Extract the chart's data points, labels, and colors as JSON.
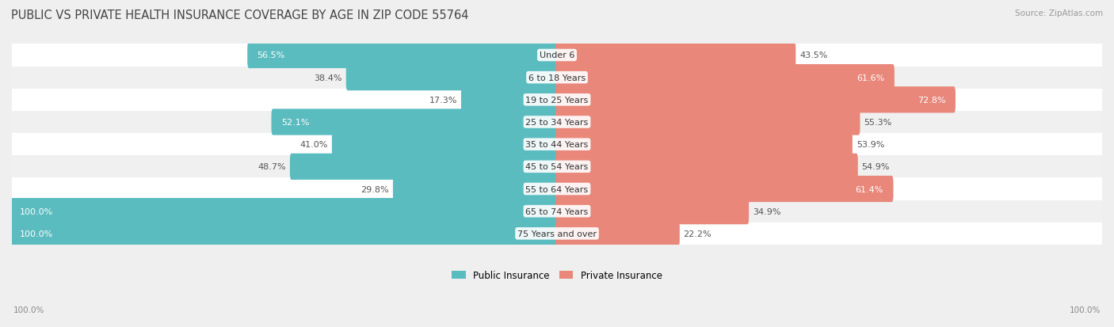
{
  "title": "PUBLIC VS PRIVATE HEALTH INSURANCE COVERAGE BY AGE IN ZIP CODE 55764",
  "source": "Source: ZipAtlas.com",
  "categories": [
    "Under 6",
    "6 to 18 Years",
    "19 to 25 Years",
    "25 to 34 Years",
    "35 to 44 Years",
    "45 to 54 Years",
    "55 to 64 Years",
    "65 to 74 Years",
    "75 Years and over"
  ],
  "public_values": [
    56.5,
    38.4,
    17.3,
    52.1,
    41.0,
    48.7,
    29.8,
    100.0,
    100.0
  ],
  "private_values": [
    43.5,
    61.6,
    72.8,
    55.3,
    53.9,
    54.9,
    61.4,
    34.9,
    22.2
  ],
  "public_color": "#5bbcbf",
  "private_color": "#e8877a",
  "bg_color": "#efefef",
  "row_colors": [
    "#ffffff",
    "#f0f0f0"
  ],
  "title_fontsize": 10.5,
  "label_fontsize": 8.0,
  "cat_fontsize": 8.0,
  "bar_height": 0.58,
  "max_val": 100.0,
  "legend_public": "Public Insurance",
  "legend_private": "Private Insurance"
}
